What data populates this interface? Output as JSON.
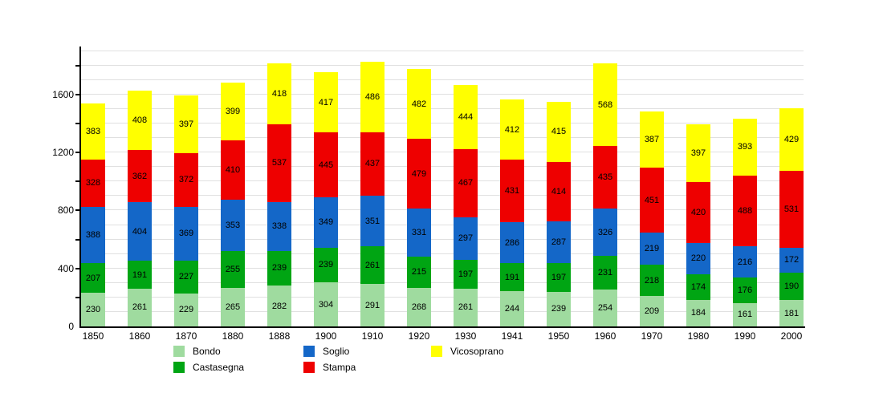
{
  "chart_data": {
    "type": "bar",
    "stacked": true,
    "title": "",
    "xlabel": "",
    "ylabel": "",
    "categories": [
      "1850",
      "1860",
      "1870",
      "1880",
      "1888",
      "1900",
      "1910",
      "1920",
      "1930",
      "1941",
      "1950",
      "1960",
      "1970",
      "1980",
      "1990",
      "2000"
    ],
    "series": [
      {
        "name": "Bondo",
        "color": "#9fdb9f",
        "values": [
          230,
          261,
          229,
          265,
          282,
          304,
          291,
          268,
          261,
          244,
          239,
          254,
          209,
          184,
          161,
          181
        ]
      },
      {
        "name": "Castasegna",
        "color": "#00a513",
        "values": [
          207,
          191,
          227,
          255,
          239,
          239,
          261,
          215,
          197,
          191,
          197,
          231,
          218,
          174,
          176,
          190
        ]
      },
      {
        "name": "Soglio",
        "color": "#1467c8",
        "values": [
          388,
          404,
          369,
          353,
          338,
          349,
          351,
          331,
          297,
          286,
          287,
          326,
          219,
          220,
          216,
          172
        ]
      },
      {
        "name": "Stampa",
        "color": "#ee0000",
        "values": [
          328,
          362,
          372,
          410,
          537,
          445,
          437,
          479,
          467,
          431,
          414,
          435,
          451,
          420,
          488,
          531
        ]
      },
      {
        "name": "Vicosoprano",
        "color": "#ffff00",
        "values": [
          383,
          408,
          397,
          399,
          418,
          417,
          486,
          482,
          444,
          412,
          415,
          568,
          387,
          397,
          393,
          429
        ]
      }
    ],
    "y_axis": {
      "label_values": [
        0,
        400,
        800,
        1200,
        1600
      ],
      "tick_step": 200,
      "grid_step": 100,
      "max": 1920
    },
    "legend": {
      "position": "bottom",
      "columns": [
        [
          "Bondo",
          "Castasegna"
        ],
        [
          "Soglio",
          "Stampa"
        ],
        [
          "Vicosoprano"
        ]
      ]
    },
    "grid": true,
    "colors": {
      "axis": "#000000",
      "gridline": "#e0e0e0",
      "background": "#ffffff",
      "value_label": "#000000"
    }
  }
}
